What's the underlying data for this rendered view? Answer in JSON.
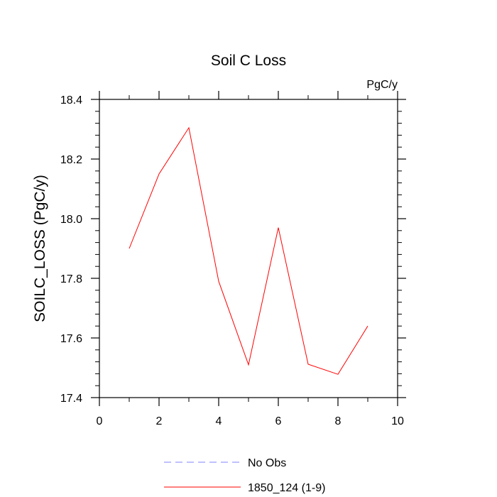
{
  "chart_data": {
    "type": "line",
    "title": "Soil C Loss",
    "units": "PgC/y",
    "xlabel": "",
    "ylabel": "SOILC_LOSS  (PgC/y)",
    "xlim": [
      0,
      10
    ],
    "ylim": [
      17.4,
      18.4
    ],
    "xticks": [
      0,
      2,
      4,
      6,
      8,
      10
    ],
    "xtick_labels": [
      "0",
      "2",
      "4",
      "6",
      "8",
      "10"
    ],
    "yticks": [
      17.4,
      17.6,
      17.8,
      18.0,
      18.2,
      18.4
    ],
    "ytick_labels": [
      "17.4",
      "17.6",
      "17.8",
      "18.0",
      "18.2",
      "18.4"
    ],
    "grid": false,
    "legend_position": "bottom",
    "series": [
      {
        "name": "No Obs",
        "color": "#8080ff",
        "dash": "dashed",
        "x": [],
        "y": []
      },
      {
        "name": "1850_124 (1-9)",
        "color": "#ff0000",
        "dash": "solid",
        "x": [
          1,
          2,
          3,
          4,
          5,
          6,
          7,
          8,
          9
        ],
        "y": [
          17.9,
          18.15,
          18.305,
          17.79,
          17.51,
          17.97,
          17.512,
          17.478,
          17.64
        ]
      }
    ]
  }
}
